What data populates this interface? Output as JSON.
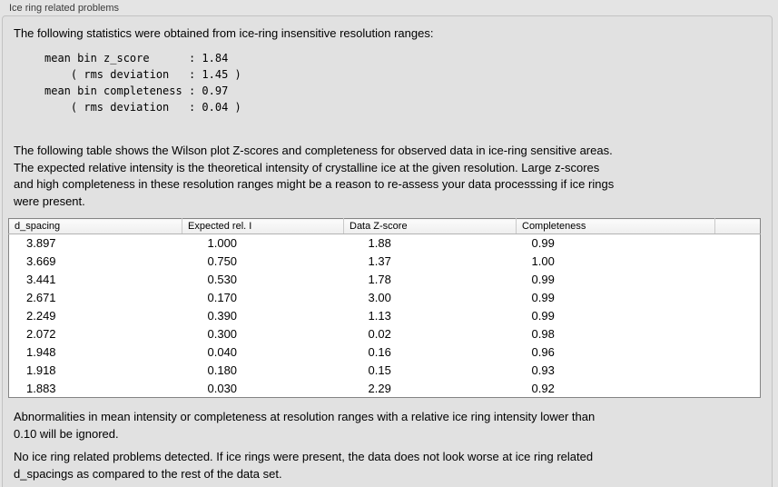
{
  "panel": {
    "title": "Ice ring related problems"
  },
  "intro": "The following statistics were obtained from ice-ring insensitive resolution ranges:",
  "stats_block": "mean bin z_score      : 1.84\n    ( rms deviation   : 1.45 )\nmean bin completeness : 0.97\n    ( rms deviation   : 0.04 )",
  "stats": {
    "mean_bin_z_score": "1.84",
    "z_score_rms_deviation": "1.45",
    "mean_bin_completeness": "0.97",
    "completeness_rms_deviation": "0.04"
  },
  "description": "The following table shows the Wilson plot Z-scores and completeness for observed data in ice-ring sensitive areas.\nThe expected relative intensity is the theoretical intensity of crystalline ice at the given resolution. Large z-scores\nand high completeness in these resolution ranges might be a reason to re-assess your data processsing if ice rings\nwere present.",
  "table": {
    "columns": [
      "d_spacing",
      "Expected rel. I",
      "Data Z-score",
      "Completeness"
    ],
    "rows": [
      [
        "3.897",
        "1.000",
        "1.88",
        "0.99"
      ],
      [
        "3.669",
        "0.750",
        "1.37",
        "1.00"
      ],
      [
        "3.441",
        "0.530",
        "1.78",
        "0.99"
      ],
      [
        "2.671",
        "0.170",
        "3.00",
        "0.99"
      ],
      [
        "2.249",
        "0.390",
        "1.13",
        "0.99"
      ],
      [
        "2.072",
        "0.300",
        "0.02",
        "0.98"
      ],
      [
        "1.948",
        "0.040",
        "0.16",
        "0.96"
      ],
      [
        "1.918",
        "0.180",
        "0.15",
        "0.93"
      ],
      [
        "1.883",
        "0.030",
        "2.29",
        "0.92"
      ]
    ]
  },
  "notes": {
    "ignore_rule": "Abnormalities in mean intensity or completeness at resolution ranges with a relative ice ring intensity lower than\n0.10 will be ignored.",
    "conclusion": "No ice ring related problems detected. If ice rings were present, the data does not look worse at ice ring related\nd_spacings as compared to the rest of the data set."
  },
  "colors": {
    "page_bg": "#e4e4e4",
    "box_bg": "#e1e1e1",
    "box_border": "#c2c2c2",
    "table_border": "#848484",
    "table_header_bg": "#f2f2f2",
    "table_row_bg": "#ffffff",
    "text": "#000000",
    "title_text": "#3a3a3a"
  }
}
